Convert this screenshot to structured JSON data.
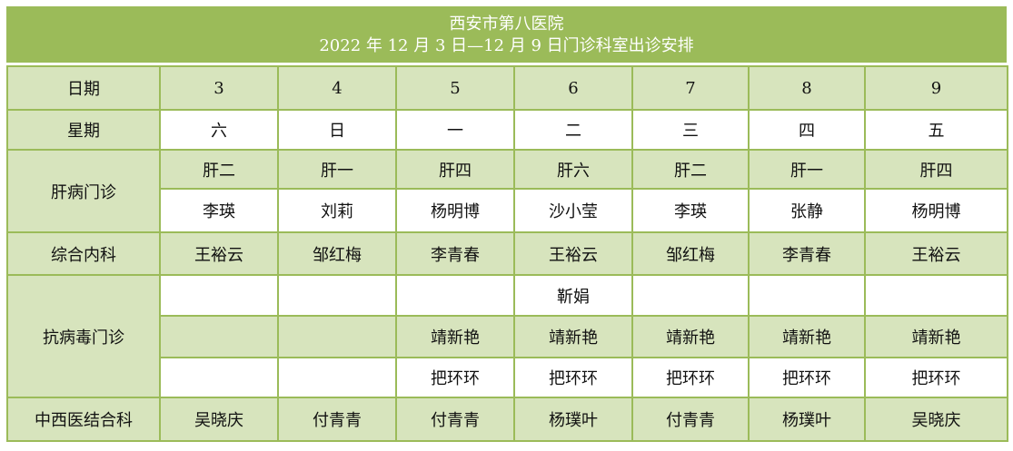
{
  "title": {
    "line1": "西安市第八医院",
    "line2": "2022 年 12 月 3 日—12 月 9 日门诊科室出诊安排"
  },
  "colors": {
    "header_bg": "#9bbb59",
    "cell_light": "#d7e4bd",
    "border": "#9bbb59"
  },
  "rows": {
    "date": {
      "label": "日期",
      "values": [
        "3",
        "4",
        "5",
        "6",
        "7",
        "8",
        "9"
      ]
    },
    "weekday": {
      "label": "星期",
      "values": [
        "六",
        "日",
        "一",
        "二",
        "三",
        "四",
        "五"
      ]
    },
    "liver": {
      "label": "肝病门诊",
      "rooms": [
        "肝二",
        "肝一",
        "肝四",
        "肝六",
        "肝二",
        "肝一",
        "肝四"
      ],
      "doctors": [
        "李瑛",
        "刘莉",
        "杨明博",
        "沙小莹",
        "李瑛",
        "张静",
        "杨明博"
      ]
    },
    "internal": {
      "label": "综合内科",
      "values": [
        "王裕云",
        "邹红梅",
        "李青春",
        "王裕云",
        "邹红梅",
        "李青春",
        "王裕云"
      ]
    },
    "antiviral": {
      "label": "抗病毒门诊",
      "row1": [
        "",
        "",
        "",
        "靳娟",
        "",
        "",
        ""
      ],
      "row2": [
        "",
        "",
        "靖新艳",
        "靖新艳",
        "靖新艳",
        "靖新艳",
        "靖新艳"
      ],
      "row3": [
        "",
        "",
        "把环环",
        "把环环",
        "把环环",
        "把环环",
        "把环环"
      ]
    },
    "tcm": {
      "label": "中西医结合科",
      "values": [
        "吴晓庆",
        "付青青",
        "付青青",
        "杨璞叶",
        "付青青",
        "杨璞叶",
        "吴晓庆"
      ]
    }
  }
}
